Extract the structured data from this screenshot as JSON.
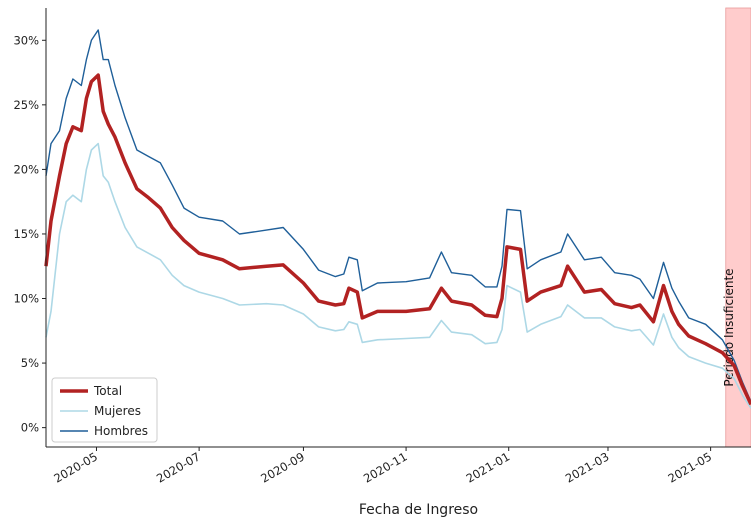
{
  "chart_data": {
    "type": "line",
    "title": "",
    "xlabel": "Fecha de Ingreso",
    "ylabel": "",
    "x_range": [
      "2020-04-01",
      "2021-05-25"
    ],
    "ylim": [
      -1.5,
      32.5
    ],
    "y_ticks": [
      0,
      5,
      10,
      15,
      20,
      25,
      30
    ],
    "y_tick_labels": [
      "0%",
      "5%",
      "10%",
      "15%",
      "20%",
      "25%",
      "30%"
    ],
    "x_ticks": [
      "2020-05-01",
      "2020-07-01",
      "2020-09-01",
      "2020-11-01",
      "2021-01-01",
      "2021-03-01",
      "2021-05-01"
    ],
    "x_tick_labels": [
      "2020-05",
      "2020-07",
      "2020-09",
      "2020-11",
      "2021-01",
      "2021-03",
      "2021-05"
    ],
    "grid": false,
    "legend_position": "lower-left",
    "annotation_band": {
      "label": "Periodo Insuficiente",
      "start": "2021-05-10",
      "end": "2021-05-25",
      "color": "#ffcccc"
    },
    "series": [
      {
        "name": "Total",
        "color": "#b22222",
        "points": [
          [
            "2020-04-01",
            12.5
          ],
          [
            "2020-04-04",
            16.0
          ],
          [
            "2020-04-09",
            19.5
          ],
          [
            "2020-04-13",
            22.0
          ],
          [
            "2020-04-17",
            23.3
          ],
          [
            "2020-04-22",
            23.0
          ],
          [
            "2020-04-25",
            25.5
          ],
          [
            "2020-04-28",
            26.8
          ],
          [
            "2020-05-02",
            27.3
          ],
          [
            "2020-05-05",
            24.5
          ],
          [
            "2020-05-08",
            23.5
          ],
          [
            "2020-05-12",
            22.5
          ],
          [
            "2020-05-18",
            20.5
          ],
          [
            "2020-05-25",
            18.5
          ],
          [
            "2020-06-01",
            17.8
          ],
          [
            "2020-06-08",
            17.0
          ],
          [
            "2020-06-15",
            15.5
          ],
          [
            "2020-06-22",
            14.5
          ],
          [
            "2020-07-01",
            13.5
          ],
          [
            "2020-07-15",
            13.0
          ],
          [
            "2020-07-25",
            12.3
          ],
          [
            "2020-08-10",
            12.5
          ],
          [
            "2020-08-20",
            12.6
          ],
          [
            "2020-09-01",
            11.2
          ],
          [
            "2020-09-10",
            9.8
          ],
          [
            "2020-09-20",
            9.5
          ],
          [
            "2020-09-25",
            9.6
          ],
          [
            "2020-09-28",
            10.8
          ],
          [
            "2020-10-03",
            10.5
          ],
          [
            "2020-10-06",
            8.5
          ],
          [
            "2020-10-15",
            9.0
          ],
          [
            "2020-11-01",
            9.0
          ],
          [
            "2020-11-15",
            9.2
          ],
          [
            "2020-11-22",
            10.8
          ],
          [
            "2020-11-28",
            9.8
          ],
          [
            "2020-12-10",
            9.5
          ],
          [
            "2020-12-18",
            8.7
          ],
          [
            "2020-12-25",
            8.6
          ],
          [
            "2020-12-28",
            10.0
          ],
          [
            "2020-12-31",
            14.0
          ],
          [
            "2021-01-08",
            13.8
          ],
          [
            "2021-01-12",
            9.8
          ],
          [
            "2021-01-20",
            10.5
          ],
          [
            "2021-02-01",
            11.0
          ],
          [
            "2021-02-05",
            12.5
          ],
          [
            "2021-02-15",
            10.5
          ],
          [
            "2021-02-25",
            10.7
          ],
          [
            "2021-03-05",
            9.6
          ],
          [
            "2021-03-15",
            9.3
          ],
          [
            "2021-03-20",
            9.5
          ],
          [
            "2021-03-28",
            8.2
          ],
          [
            "2021-04-03",
            11.0
          ],
          [
            "2021-04-08",
            9.0
          ],
          [
            "2021-04-12",
            8.0
          ],
          [
            "2021-04-18",
            7.1
          ],
          [
            "2021-04-28",
            6.5
          ],
          [
            "2021-05-08",
            5.8
          ],
          [
            "2021-05-15",
            4.8
          ],
          [
            "2021-05-20",
            3.2
          ],
          [
            "2021-05-25",
            1.8
          ]
        ]
      },
      {
        "name": "Mujeres",
        "color": "#add8e6",
        "points": [
          [
            "2020-04-01",
            7.0
          ],
          [
            "2020-04-04",
            9.0
          ],
          [
            "2020-04-09",
            15.0
          ],
          [
            "2020-04-13",
            17.5
          ],
          [
            "2020-04-17",
            18.0
          ],
          [
            "2020-04-22",
            17.5
          ],
          [
            "2020-04-25",
            20.0
          ],
          [
            "2020-04-28",
            21.5
          ],
          [
            "2020-05-02",
            22.0
          ],
          [
            "2020-05-05",
            19.5
          ],
          [
            "2020-05-08",
            19.0
          ],
          [
            "2020-05-12",
            17.5
          ],
          [
            "2020-05-18",
            15.5
          ],
          [
            "2020-05-25",
            14.0
          ],
          [
            "2020-06-01",
            13.5
          ],
          [
            "2020-06-08",
            13.0
          ],
          [
            "2020-06-15",
            11.8
          ],
          [
            "2020-06-22",
            11.0
          ],
          [
            "2020-07-01",
            10.5
          ],
          [
            "2020-07-15",
            10.0
          ],
          [
            "2020-07-25",
            9.5
          ],
          [
            "2020-08-10",
            9.6
          ],
          [
            "2020-08-20",
            9.5
          ],
          [
            "2020-09-01",
            8.8
          ],
          [
            "2020-09-10",
            7.8
          ],
          [
            "2020-09-20",
            7.5
          ],
          [
            "2020-09-25",
            7.6
          ],
          [
            "2020-09-28",
            8.2
          ],
          [
            "2020-10-03",
            8.0
          ],
          [
            "2020-10-06",
            6.6
          ],
          [
            "2020-10-15",
            6.8
          ],
          [
            "2020-11-01",
            6.9
          ],
          [
            "2020-11-15",
            7.0
          ],
          [
            "2020-11-22",
            8.3
          ],
          [
            "2020-11-28",
            7.4
          ],
          [
            "2020-12-10",
            7.2
          ],
          [
            "2020-12-18",
            6.5
          ],
          [
            "2020-12-25",
            6.6
          ],
          [
            "2020-12-28",
            7.6
          ],
          [
            "2020-12-31",
            11.0
          ],
          [
            "2021-01-08",
            10.5
          ],
          [
            "2021-01-12",
            7.4
          ],
          [
            "2021-01-20",
            8.0
          ],
          [
            "2021-02-01",
            8.6
          ],
          [
            "2021-02-05",
            9.5
          ],
          [
            "2021-02-15",
            8.5
          ],
          [
            "2021-02-25",
            8.5
          ],
          [
            "2021-03-05",
            7.8
          ],
          [
            "2021-03-15",
            7.5
          ],
          [
            "2021-03-20",
            7.6
          ],
          [
            "2021-03-28",
            6.4
          ],
          [
            "2021-04-03",
            8.8
          ],
          [
            "2021-04-08",
            7.0
          ],
          [
            "2021-04-12",
            6.2
          ],
          [
            "2021-04-18",
            5.5
          ],
          [
            "2021-04-28",
            5.0
          ],
          [
            "2021-05-08",
            4.6
          ],
          [
            "2021-05-15",
            3.8
          ],
          [
            "2021-05-20",
            2.5
          ],
          [
            "2021-05-25",
            1.5
          ]
        ]
      },
      {
        "name": "Hombres",
        "color": "#1f5f99",
        "points": [
          [
            "2020-04-01",
            19.5
          ],
          [
            "2020-04-04",
            22.0
          ],
          [
            "2020-04-09",
            23.0
          ],
          [
            "2020-04-13",
            25.5
          ],
          [
            "2020-04-17",
            27.0
          ],
          [
            "2020-04-22",
            26.5
          ],
          [
            "2020-04-25",
            28.5
          ],
          [
            "2020-04-28",
            30.0
          ],
          [
            "2020-05-02",
            30.8
          ],
          [
            "2020-05-05",
            28.5
          ],
          [
            "2020-05-08",
            28.5
          ],
          [
            "2020-05-12",
            26.5
          ],
          [
            "2020-05-18",
            24.0
          ],
          [
            "2020-05-25",
            21.5
          ],
          [
            "2020-06-01",
            21.0
          ],
          [
            "2020-06-08",
            20.5
          ],
          [
            "2020-06-15",
            18.8
          ],
          [
            "2020-06-22",
            17.0
          ],
          [
            "2020-07-01",
            16.3
          ],
          [
            "2020-07-15",
            16.0
          ],
          [
            "2020-07-25",
            15.0
          ],
          [
            "2020-08-10",
            15.3
          ],
          [
            "2020-08-20",
            15.5
          ],
          [
            "2020-09-01",
            13.8
          ],
          [
            "2020-09-10",
            12.2
          ],
          [
            "2020-09-20",
            11.7
          ],
          [
            "2020-09-25",
            11.9
          ],
          [
            "2020-09-28",
            13.2
          ],
          [
            "2020-10-03",
            13.0
          ],
          [
            "2020-10-06",
            10.6
          ],
          [
            "2020-10-15",
            11.2
          ],
          [
            "2020-11-01",
            11.3
          ],
          [
            "2020-11-15",
            11.6
          ],
          [
            "2020-11-22",
            13.6
          ],
          [
            "2020-11-28",
            12.0
          ],
          [
            "2020-12-10",
            11.8
          ],
          [
            "2020-12-18",
            10.9
          ],
          [
            "2020-12-25",
            10.9
          ],
          [
            "2020-12-28",
            12.5
          ],
          [
            "2020-12-31",
            16.9
          ],
          [
            "2021-01-08",
            16.8
          ],
          [
            "2021-01-12",
            12.3
          ],
          [
            "2021-01-20",
            13.0
          ],
          [
            "2021-02-01",
            13.6
          ],
          [
            "2021-02-05",
            15.0
          ],
          [
            "2021-02-15",
            13.0
          ],
          [
            "2021-02-25",
            13.2
          ],
          [
            "2021-03-05",
            12.0
          ],
          [
            "2021-03-15",
            11.8
          ],
          [
            "2021-03-20",
            11.5
          ],
          [
            "2021-03-28",
            10.0
          ],
          [
            "2021-04-03",
            12.8
          ],
          [
            "2021-04-08",
            10.8
          ],
          [
            "2021-04-12",
            9.8
          ],
          [
            "2021-04-18",
            8.5
          ],
          [
            "2021-04-28",
            8.0
          ],
          [
            "2021-05-08",
            6.8
          ],
          [
            "2021-05-15",
            5.2
          ],
          [
            "2021-05-20",
            3.5
          ],
          [
            "2021-05-25",
            2.0
          ]
        ]
      }
    ]
  }
}
